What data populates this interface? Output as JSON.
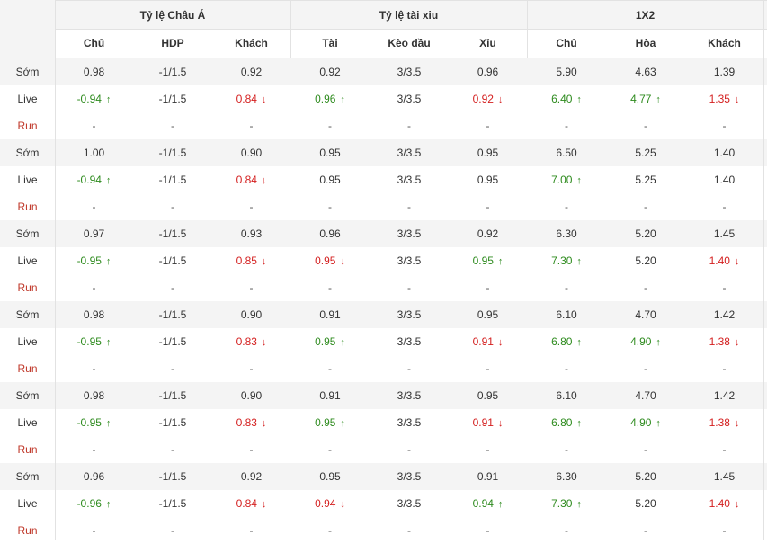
{
  "header": {
    "groups": [
      {
        "title": "Tỷ lệ Châu Á"
      },
      {
        "title": "Tỷ lệ tài xiu"
      },
      {
        "title": "1X2"
      }
    ],
    "columns": [
      "Chủ",
      "HDP",
      "Khách",
      "Tài",
      "Kèo đầu",
      "Xỉu",
      "Chủ",
      "Hòa",
      "Khách"
    ]
  },
  "row_labels": {
    "early": "Sớm",
    "live": "Live",
    "run": "Run"
  },
  "dash": "-",
  "colors": {
    "up": "#2e8b1e",
    "down": "#d42020",
    "run_label": "#c0392b",
    "header_bg": "#f4f4f4",
    "border": "#e2e2e2"
  },
  "blocks": [
    {
      "early": [
        "0.98",
        "-1/1.5",
        "0.92",
        "0.92",
        "3/3.5",
        "0.96",
        "5.90",
        "4.63",
        "1.39"
      ],
      "live": [
        {
          "v": "-0.94",
          "d": "up"
        },
        {
          "v": "-1/1.5",
          "d": ""
        },
        {
          "v": "0.84",
          "d": "down"
        },
        {
          "v": "0.96",
          "d": "up"
        },
        {
          "v": "3/3.5",
          "d": ""
        },
        {
          "v": "0.92",
          "d": "down"
        },
        {
          "v": "6.40",
          "d": "up"
        },
        {
          "v": "4.77",
          "d": "up"
        },
        {
          "v": "1.35",
          "d": "down"
        }
      ]
    },
    {
      "early": [
        "1.00",
        "-1/1.5",
        "0.90",
        "0.95",
        "3/3.5",
        "0.95",
        "6.50",
        "5.25",
        "1.40"
      ],
      "live": [
        {
          "v": "-0.94",
          "d": "up"
        },
        {
          "v": "-1/1.5",
          "d": ""
        },
        {
          "v": "0.84",
          "d": "down"
        },
        {
          "v": "0.95",
          "d": ""
        },
        {
          "v": "3/3.5",
          "d": ""
        },
        {
          "v": "0.95",
          "d": ""
        },
        {
          "v": "7.00",
          "d": "up"
        },
        {
          "v": "5.25",
          "d": ""
        },
        {
          "v": "1.40",
          "d": ""
        }
      ]
    },
    {
      "early": [
        "0.97",
        "-1/1.5",
        "0.93",
        "0.96",
        "3/3.5",
        "0.92",
        "6.30",
        "5.20",
        "1.45"
      ],
      "live": [
        {
          "v": "-0.95",
          "d": "up"
        },
        {
          "v": "-1/1.5",
          "d": ""
        },
        {
          "v": "0.85",
          "d": "down"
        },
        {
          "v": "0.95",
          "d": "down"
        },
        {
          "v": "3/3.5",
          "d": ""
        },
        {
          "v": "0.95",
          "d": "up"
        },
        {
          "v": "7.30",
          "d": "up"
        },
        {
          "v": "5.20",
          "d": ""
        },
        {
          "v": "1.40",
          "d": "down"
        }
      ]
    },
    {
      "early": [
        "0.98",
        "-1/1.5",
        "0.90",
        "0.91",
        "3/3.5",
        "0.95",
        "6.10",
        "4.70",
        "1.42"
      ],
      "live": [
        {
          "v": "-0.95",
          "d": "up"
        },
        {
          "v": "-1/1.5",
          "d": ""
        },
        {
          "v": "0.83",
          "d": "down"
        },
        {
          "v": "0.95",
          "d": "up"
        },
        {
          "v": "3/3.5",
          "d": ""
        },
        {
          "v": "0.91",
          "d": "down"
        },
        {
          "v": "6.80",
          "d": "up"
        },
        {
          "v": "4.90",
          "d": "up"
        },
        {
          "v": "1.38",
          "d": "down"
        }
      ]
    },
    {
      "early": [
        "0.98",
        "-1/1.5",
        "0.90",
        "0.91",
        "3/3.5",
        "0.95",
        "6.10",
        "4.70",
        "1.42"
      ],
      "live": [
        {
          "v": "-0.95",
          "d": "up"
        },
        {
          "v": "-1/1.5",
          "d": ""
        },
        {
          "v": "0.83",
          "d": "down"
        },
        {
          "v": "0.95",
          "d": "up"
        },
        {
          "v": "3/3.5",
          "d": ""
        },
        {
          "v": "0.91",
          "d": "down"
        },
        {
          "v": "6.80",
          "d": "up"
        },
        {
          "v": "4.90",
          "d": "up"
        },
        {
          "v": "1.38",
          "d": "down"
        }
      ]
    },
    {
      "early": [
        "0.96",
        "-1/1.5",
        "0.92",
        "0.95",
        "3/3.5",
        "0.91",
        "6.30",
        "5.20",
        "1.45"
      ],
      "live": [
        {
          "v": "-0.96",
          "d": "up"
        },
        {
          "v": "-1/1.5",
          "d": ""
        },
        {
          "v": "0.84",
          "d": "down"
        },
        {
          "v": "0.94",
          "d": "down"
        },
        {
          "v": "3/3.5",
          "d": ""
        },
        {
          "v": "0.94",
          "d": "up"
        },
        {
          "v": "7.30",
          "d": "up"
        },
        {
          "v": "5.20",
          "d": ""
        },
        {
          "v": "1.40",
          "d": "down"
        }
      ]
    }
  ]
}
